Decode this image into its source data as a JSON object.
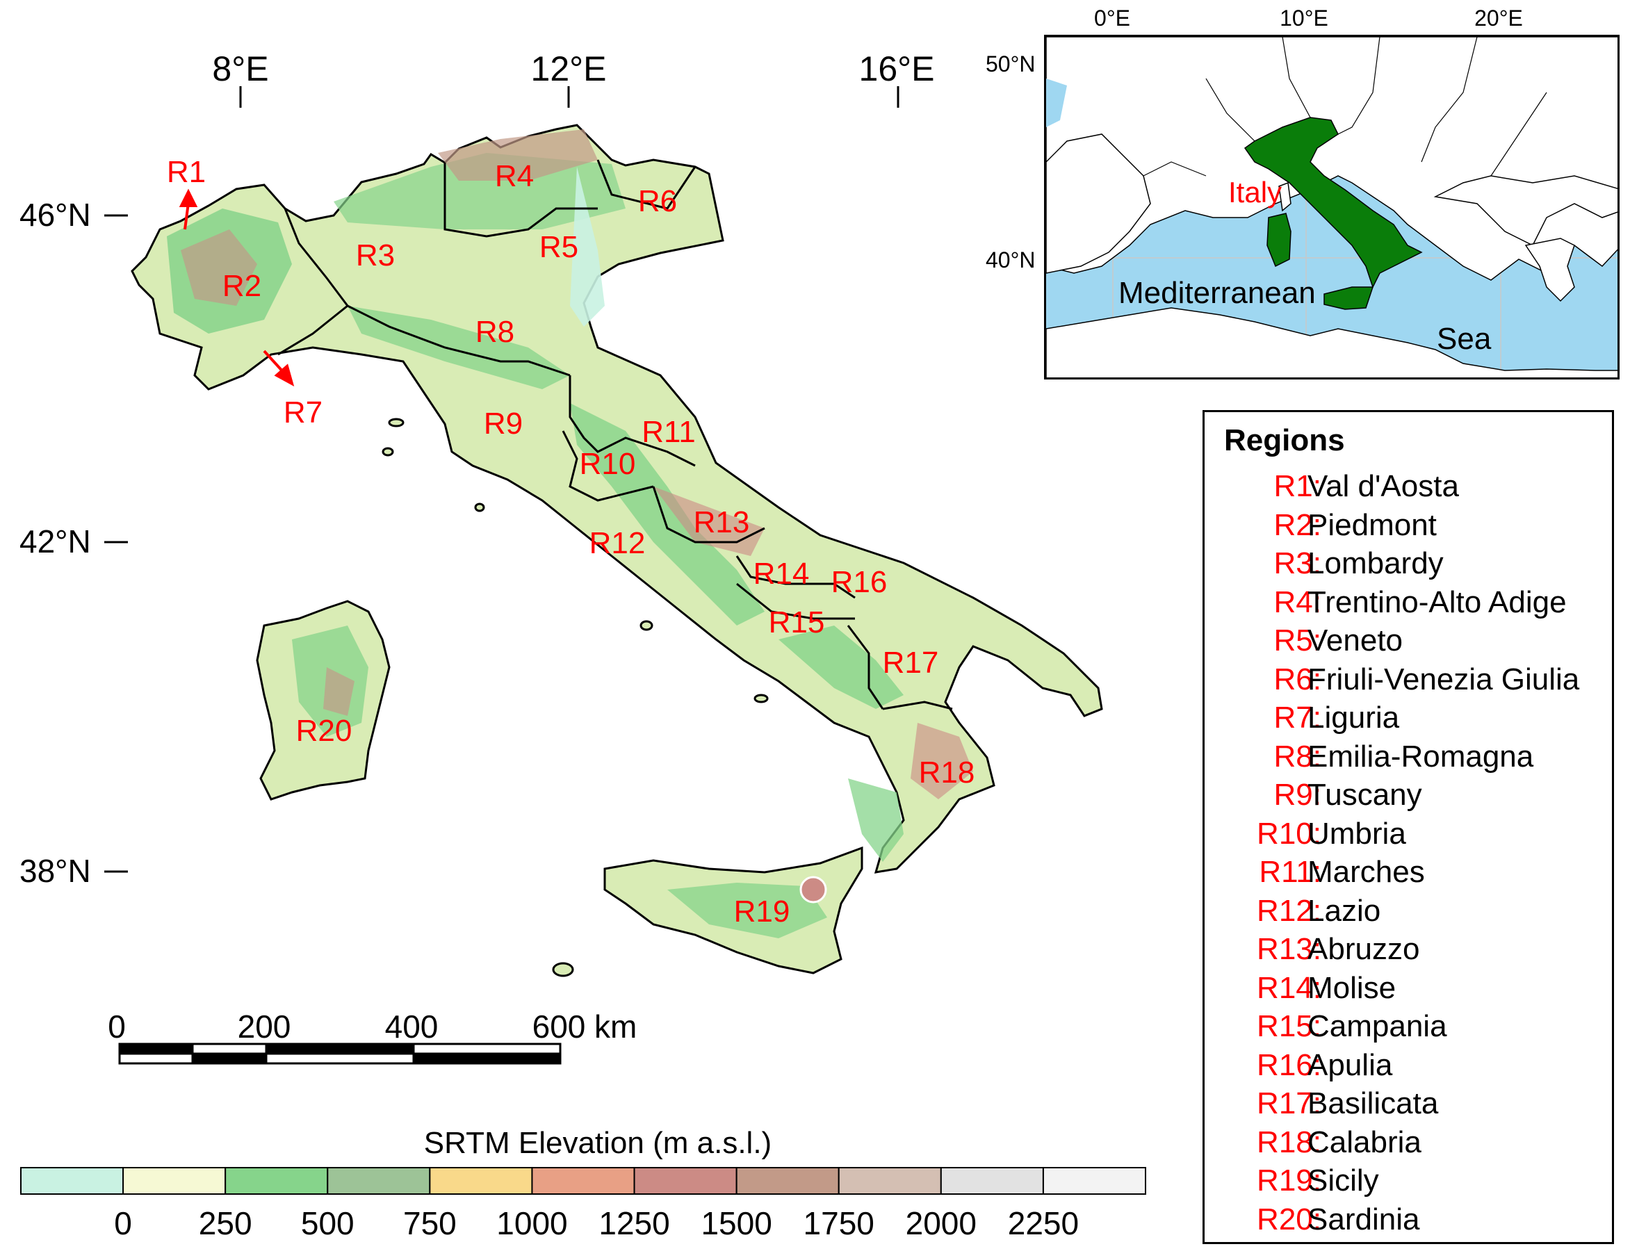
{
  "map": {
    "longitude_labels": [
      "8°E",
      "12°E",
      "16°E"
    ],
    "latitude_labels": [
      "46°N",
      "42°N",
      "38°N"
    ],
    "region_labels": [
      "R1",
      "R2",
      "R3",
      "R4",
      "R5",
      "R6",
      "R7",
      "R8",
      "R9",
      "R10",
      "R11",
      "R12",
      "R13",
      "R14",
      "R15",
      "R16",
      "R17",
      "R18",
      "R19",
      "R20"
    ]
  },
  "scale_bar": {
    "ticks": [
      "0",
      "200",
      "400",
      "600"
    ],
    "unit": "km"
  },
  "colorbar": {
    "title": "SRTM Elevation (m a.s.l.)",
    "tick_labels": [
      "0",
      "250",
      "500",
      "750",
      "1000",
      "1250",
      "1500",
      "1750",
      "2000",
      "2250"
    ],
    "colors": [
      "#c9f2e2",
      "#f6f9d4",
      "#86d48b",
      "#9dc397",
      "#f9d98a",
      "#e8a085",
      "#cc8b85",
      "#c29a88",
      "#d4bfb3",
      "#e2e2e2",
      "#f3f3f3"
    ]
  },
  "inset": {
    "longitude_labels": [
      "0°E",
      "10°E",
      "20°E"
    ],
    "latitude_labels": [
      "50°N",
      "40°N"
    ],
    "country_label": "Italy",
    "sea_label_1": "Mediterranean",
    "sea_label_2": "Sea",
    "colors": {
      "sea": "#9fd7f1",
      "land": "#ffffff",
      "italy": "#0a7d0a"
    }
  },
  "legend": {
    "title": "Regions",
    "items": [
      {
        "code": "R1:",
        "name": "Val d'Aosta"
      },
      {
        "code": "R2:",
        "name": "Piedmont"
      },
      {
        "code": "R3:",
        "name": "Lombardy"
      },
      {
        "code": "R4:",
        "name": "Trentino-Alto Adige"
      },
      {
        "code": "R5:",
        "name": "Veneto"
      },
      {
        "code": "R6:",
        "name": "Friuli-Venezia Giulia"
      },
      {
        "code": "R7:",
        "name": "Liguria"
      },
      {
        "code": "R8:",
        "name": "Emilia-Romagna"
      },
      {
        "code": "R9:",
        "name": "Tuscany"
      },
      {
        "code": "R10:",
        "name": "Umbria"
      },
      {
        "code": "R11:",
        "name": "Marches"
      },
      {
        "code": "R12:",
        "name": "Lazio"
      },
      {
        "code": "R13:",
        "name": "Abruzzo"
      },
      {
        "code": "R14:",
        "name": "Molise"
      },
      {
        "code": "R15:",
        "name": "Campania"
      },
      {
        "code": "R16:",
        "name": "Apulia"
      },
      {
        "code": "R17:",
        "name": "Basilicata"
      },
      {
        "code": "R18:",
        "name": "Calabria"
      },
      {
        "code": "R19:",
        "name": "Sicily"
      },
      {
        "code": "R20:",
        "name": "Sardinia"
      }
    ]
  }
}
